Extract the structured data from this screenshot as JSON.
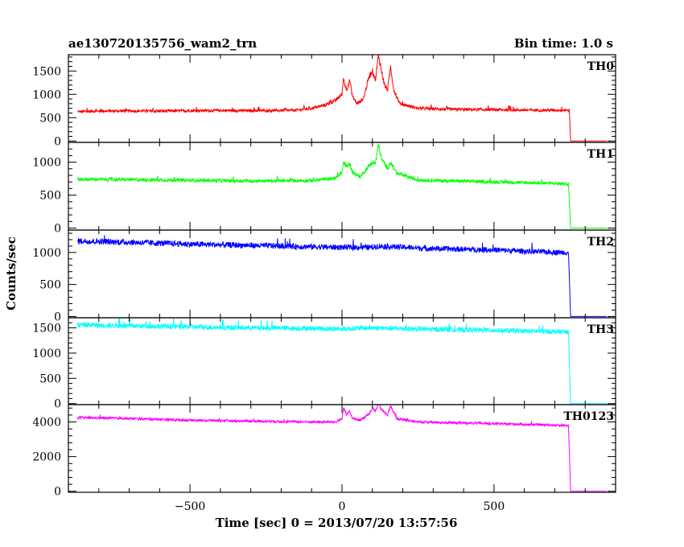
{
  "chart_data": {
    "type": "line",
    "title": "ae130720135756_wam2_trn",
    "bin_time_label": "Bin time: 1.0 s",
    "xlabel": "Time [sec] 0 = 2013/07/20 13:57:56",
    "ylabel": "Counts/sec",
    "xlim": [
      -900,
      900
    ],
    "x_ticks": [
      -500,
      0,
      500
    ],
    "x_tick_labels": [
      "−500",
      "0",
      "500"
    ],
    "x_end_of_data": 750,
    "x_data_start": -870,
    "x_data_stop": 870,
    "panels": [
      {
        "name": "TH0",
        "color": "#ff0000",
        "ylim": [
          -30,
          1850
        ],
        "y_ticks": [
          0,
          500,
          1000,
          1500
        ],
        "y_tick_labels": [
          "0",
          "500",
          "1000",
          "1500"
        ],
        "baseline": 650,
        "noise": 30,
        "points": [
          [
            -870,
            630
          ],
          [
            -800,
            640
          ],
          [
            -700,
            645
          ],
          [
            -600,
            640
          ],
          [
            -500,
            650
          ],
          [
            -400,
            655
          ],
          [
            -300,
            650
          ],
          [
            -200,
            655
          ],
          [
            -150,
            660
          ],
          [
            -100,
            700
          ],
          [
            -50,
            780
          ],
          [
            -20,
            880
          ],
          [
            0,
            1000
          ],
          [
            5,
            1350
          ],
          [
            10,
            1200
          ],
          [
            15,
            1100
          ],
          [
            25,
            1300
          ],
          [
            35,
            950
          ],
          [
            50,
            800
          ],
          [
            70,
            900
          ],
          [
            90,
            1400
          ],
          [
            100,
            1500
          ],
          [
            110,
            1300
          ],
          [
            120,
            1850
          ],
          [
            130,
            1500
          ],
          [
            140,
            1200
          ],
          [
            150,
            1100
          ],
          [
            160,
            1600
          ],
          [
            170,
            1100
          ],
          [
            190,
            800
          ],
          [
            250,
            700
          ],
          [
            350,
            680
          ],
          [
            500,
            670
          ],
          [
            650,
            660
          ],
          [
            740,
            660
          ],
          [
            748,
            650
          ],
          [
            752,
            0
          ],
          [
            870,
            0
          ]
        ]
      },
      {
        "name": "TH1",
        "color": "#00ff00",
        "ylim": [
          -30,
          1300
        ],
        "y_ticks": [
          0,
          500,
          1000
        ],
        "y_tick_labels": [
          "0",
          "500",
          "1000"
        ],
        "baseline": 720,
        "noise": 25,
        "points": [
          [
            -870,
            740
          ],
          [
            -700,
            735
          ],
          [
            -500,
            725
          ],
          [
            -300,
            715
          ],
          [
            -100,
            720
          ],
          [
            -20,
            760
          ],
          [
            0,
            850
          ],
          [
            5,
            1000
          ],
          [
            15,
            930
          ],
          [
            25,
            980
          ],
          [
            35,
            840
          ],
          [
            60,
            780
          ],
          [
            90,
            950
          ],
          [
            100,
            1000
          ],
          [
            110,
            980
          ],
          [
            120,
            1280
          ],
          [
            130,
            1050
          ],
          [
            150,
            900
          ],
          [
            160,
            1000
          ],
          [
            180,
            830
          ],
          [
            250,
            730
          ],
          [
            400,
            710
          ],
          [
            600,
            690
          ],
          [
            745,
            670
          ],
          [
            752,
            0
          ],
          [
            870,
            0
          ]
        ]
      },
      {
        "name": "TH2",
        "color": "#0000ff",
        "ylim": [
          -20,
          1350
        ],
        "y_ticks": [
          0,
          500,
          1000
        ],
        "y_tick_labels": [
          "0",
          "500",
          "1000"
        ],
        "baseline": 1100,
        "noise": 45,
        "points": [
          [
            -870,
            1180
          ],
          [
            -700,
            1160
          ],
          [
            -500,
            1130
          ],
          [
            -300,
            1110
          ],
          [
            -100,
            1090
          ],
          [
            0,
            1080
          ],
          [
            100,
            1080
          ],
          [
            120,
            1100
          ],
          [
            300,
            1060
          ],
          [
            500,
            1040
          ],
          [
            650,
            1010
          ],
          [
            745,
            1000
          ],
          [
            752,
            0
          ],
          [
            870,
            0
          ]
        ]
      },
      {
        "name": "TH3",
        "color": "#00ffff",
        "ylim": [
          -20,
          1700
        ],
        "y_ticks": [
          0,
          500,
          1000,
          1500
        ],
        "y_tick_labels": [
          "0",
          "500",
          "1000",
          "1500"
        ],
        "baseline": 1500,
        "noise": 50,
        "points": [
          [
            -870,
            1560
          ],
          [
            -700,
            1540
          ],
          [
            -500,
            1520
          ],
          [
            -300,
            1500
          ],
          [
            -100,
            1490
          ],
          [
            0,
            1480
          ],
          [
            100,
            1500
          ],
          [
            300,
            1470
          ],
          [
            500,
            1450
          ],
          [
            650,
            1430
          ],
          [
            745,
            1420
          ],
          [
            752,
            0
          ],
          [
            870,
            0
          ]
        ]
      },
      {
        "name": "TH0123",
        "color": "#ff00ff",
        "ylim": [
          -60,
          5000
        ],
        "y_ticks": [
          0,
          2000,
          4000
        ],
        "y_tick_labels": [
          "0",
          "2000",
          "4000"
        ],
        "baseline": 4000,
        "noise": 70,
        "points": [
          [
            -870,
            4250
          ],
          [
            -700,
            4200
          ],
          [
            -500,
            4100
          ],
          [
            -300,
            4050
          ],
          [
            -100,
            4000
          ],
          [
            -20,
            4000
          ],
          [
            0,
            4200
          ],
          [
            5,
            4800
          ],
          [
            15,
            4400
          ],
          [
            25,
            4600
          ],
          [
            35,
            4200
          ],
          [
            60,
            4100
          ],
          [
            90,
            4500
          ],
          [
            100,
            4800
          ],
          [
            110,
            4600
          ],
          [
            120,
            5100
          ],
          [
            130,
            4700
          ],
          [
            150,
            4400
          ],
          [
            160,
            4900
          ],
          [
            180,
            4200
          ],
          [
            250,
            4000
          ],
          [
            500,
            3900
          ],
          [
            745,
            3800
          ],
          [
            752,
            0
          ],
          [
            870,
            0
          ]
        ]
      }
    ]
  }
}
